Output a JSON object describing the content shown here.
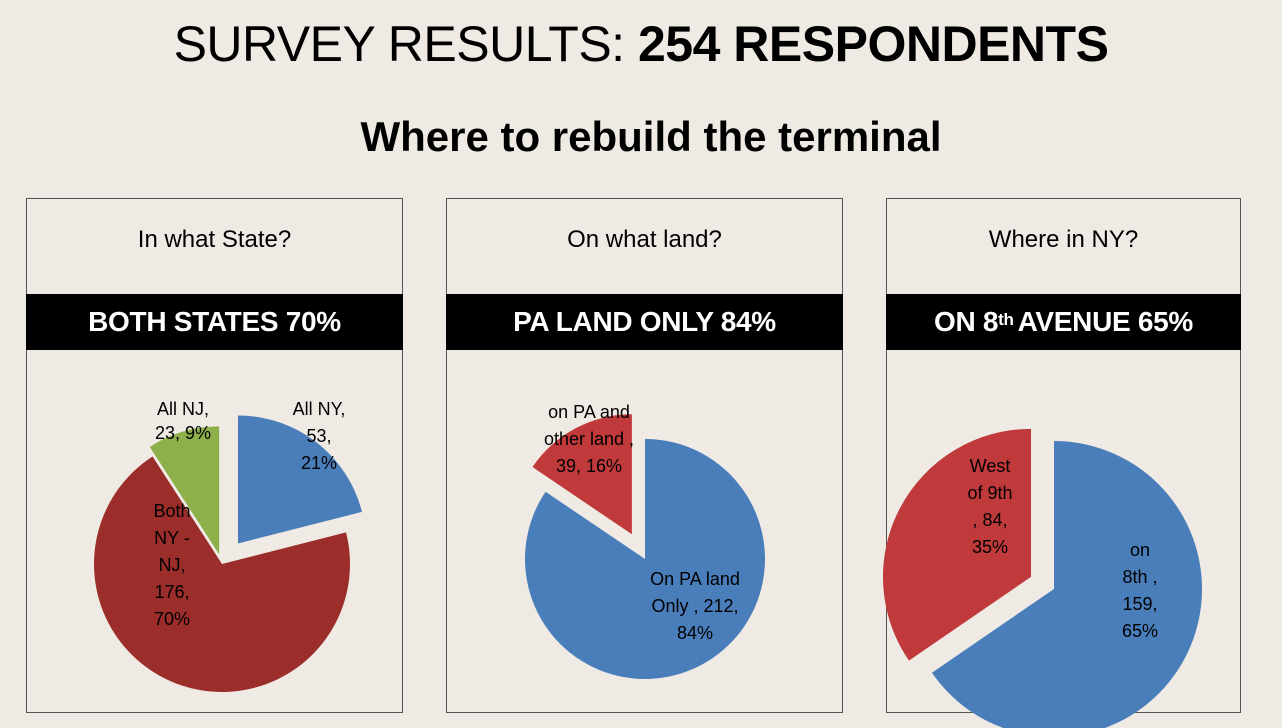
{
  "title_prefix": "SURVEY RESULTS:",
  "title_bold": "254 RESPONDENTS",
  "subtitle": "Where to rebuild the terminal",
  "chart_data": [
    {
      "type": "pie",
      "question": "In what State?",
      "banner": "BOTH STATES 70%",
      "exploded": true,
      "slices": [
        {
          "label": [
            "All NY,",
            "53,",
            "21%"
          ],
          "value": 53,
          "percent": 21,
          "color": "#4a7ebb"
        },
        {
          "label": [
            "Both",
            "NY -",
            "NJ,",
            "176,",
            "70%"
          ],
          "value": 176,
          "percent": 70,
          "color": "#9b2d2a"
        },
        {
          "label": [
            "All NJ,",
            "23, 9%"
          ],
          "value": 23,
          "percent": 9,
          "color": "#8db04a"
        }
      ]
    },
    {
      "type": "pie",
      "question": "On what land?",
      "banner": "PA LAND ONLY 84%",
      "exploded": true,
      "slices": [
        {
          "label": [
            "On PA land",
            "Only , 212,",
            "84%"
          ],
          "value": 212,
          "percent": 84,
          "color": "#4a7ebb"
        },
        {
          "label": [
            "on PA and",
            "other land ,",
            "39, 16%"
          ],
          "value": 39,
          "percent": 16,
          "color": "#c0393b"
        }
      ]
    },
    {
      "type": "pie",
      "question": "Where in NY?",
      "banner_pre": "ON 8",
      "banner_sup": "th",
      "banner_post": "AVENUE 65%",
      "exploded": true,
      "slices": [
        {
          "label": [
            "on",
            "8th ,",
            "159,",
            "65%"
          ],
          "value": 159,
          "percent": 65,
          "color": "#4a7ebb"
        },
        {
          "label": [
            "West",
            "of 9th",
            ", 84,",
            "35%"
          ],
          "value": 84,
          "percent": 35,
          "color": "#c0393b"
        }
      ]
    }
  ]
}
